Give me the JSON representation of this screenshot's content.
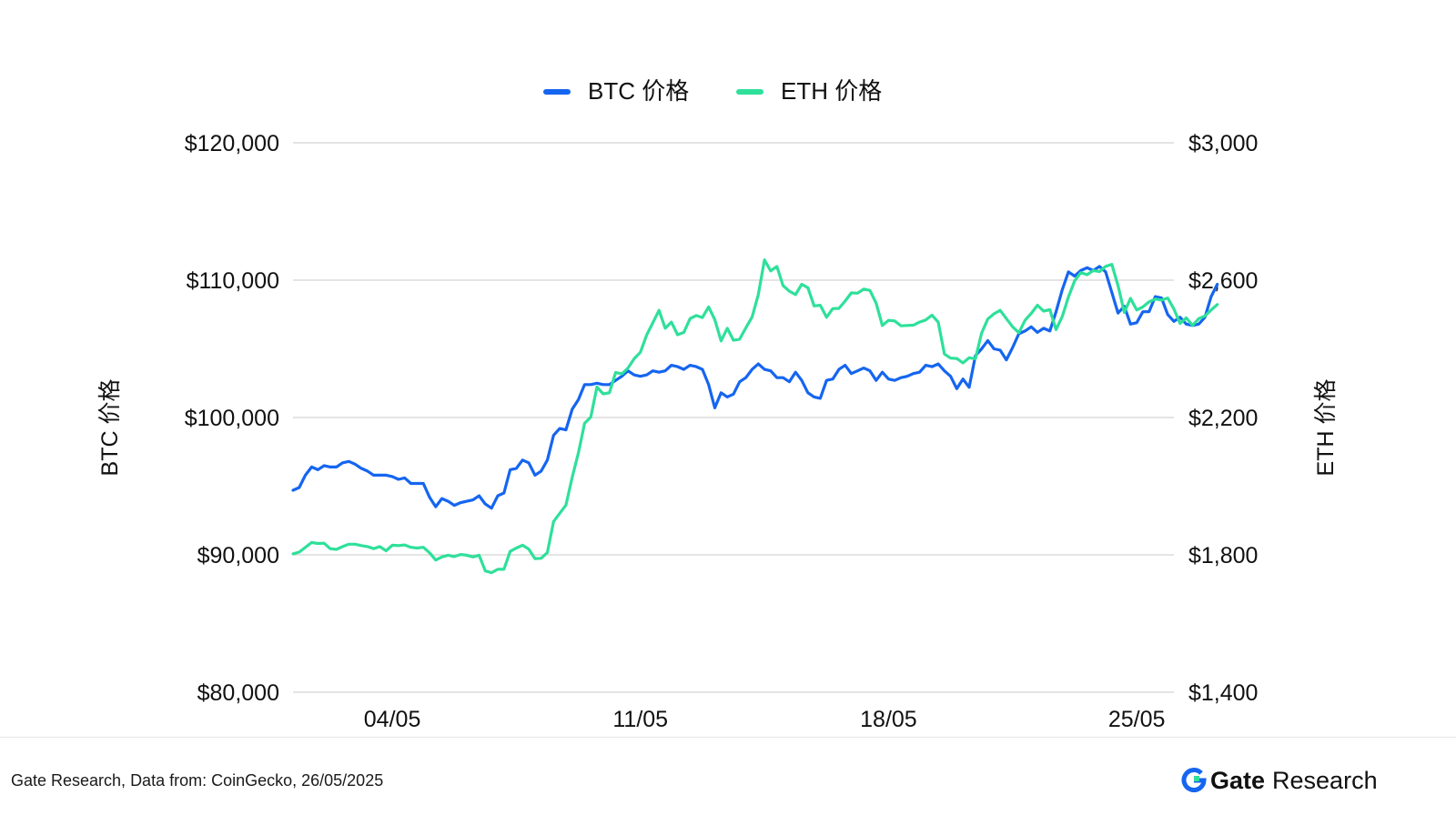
{
  "chart_data": {
    "type": "line",
    "title": "",
    "legend": {
      "placement": "top-center"
    },
    "grid": true,
    "x_ticks": [
      {
        "label": "04/05",
        "x": 6
      },
      {
        "label": "11/05",
        "x": 46
      },
      {
        "label": "18/05",
        "x": 86
      },
      {
        "label": "25/05",
        "x": 126
      }
    ],
    "x_range": [
      -10,
      132
    ],
    "y_left": {
      "label": "BTC 价格",
      "min": 80000,
      "max": 120000,
      "ticks": [
        "$80,000",
        "$90,000",
        "$100,000",
        "$110,000",
        "$120,000"
      ],
      "tick_values": [
        80000,
        90000,
        100000,
        110000,
        120000
      ]
    },
    "y_right": {
      "label": "ETH 价格",
      "min": 1400,
      "max": 3000,
      "ticks": [
        "$1,400",
        "$1,800",
        "$2,200",
        "$2,600",
        "$3,000"
      ],
      "tick_values": [
        1400,
        1800,
        2200,
        2600,
        3000
      ]
    },
    "series": [
      {
        "name": "BTC 价格",
        "axis": "left",
        "color": "#1565F0",
        "points": [
          [
            -10,
            94700
          ],
          [
            -9,
            94900
          ],
          [
            -8,
            95800
          ],
          [
            -7,
            96400
          ],
          [
            -6,
            96200
          ],
          [
            -5,
            96500
          ],
          [
            -4,
            96400
          ],
          [
            -3,
            96400
          ],
          [
            -2,
            96700
          ],
          [
            -1,
            96800
          ],
          [
            0,
            96600
          ],
          [
            1,
            96300
          ],
          [
            2,
            96100
          ],
          [
            3,
            95800
          ],
          [
            4,
            95800
          ],
          [
            5,
            95800
          ],
          [
            6,
            95700
          ],
          [
            7,
            95500
          ],
          [
            8,
            95600
          ],
          [
            9,
            95200
          ],
          [
            10,
            95200
          ],
          [
            11,
            95200
          ],
          [
            12,
            94200
          ],
          [
            13,
            93500
          ],
          [
            14,
            94100
          ],
          [
            15,
            93900
          ],
          [
            16,
            93600
          ],
          [
            17,
            93800
          ],
          [
            18,
            93900
          ],
          [
            19,
            94000
          ],
          [
            20,
            94300
          ],
          [
            21,
            93700
          ],
          [
            22,
            93400
          ],
          [
            23,
            94300
          ],
          [
            24,
            94500
          ],
          [
            25,
            96200
          ],
          [
            26,
            96300
          ],
          [
            27,
            96900
          ],
          [
            28,
            96700
          ],
          [
            29,
            95800
          ],
          [
            30,
            96100
          ],
          [
            31,
            96900
          ],
          [
            32,
            98700
          ],
          [
            33,
            99200
          ],
          [
            34,
            99100
          ],
          [
            35,
            100600
          ],
          [
            36,
            101300
          ],
          [
            37,
            102400
          ],
          [
            38,
            102400
          ],
          [
            39,
            102500
          ],
          [
            40,
            102400
          ],
          [
            41,
            102400
          ],
          [
            42,
            102700
          ],
          [
            43,
            103000
          ],
          [
            44,
            103400
          ],
          [
            45,
            103100
          ],
          [
            46,
            103000
          ],
          [
            47,
            103100
          ],
          [
            48,
            103400
          ],
          [
            49,
            103300
          ],
          [
            50,
            103400
          ],
          [
            51,
            103800
          ],
          [
            52,
            103700
          ],
          [
            53,
            103500
          ],
          [
            54,
            103800
          ],
          [
            55,
            103700
          ],
          [
            56,
            103500
          ],
          [
            57,
            102400
          ],
          [
            58,
            100700
          ],
          [
            59,
            101800
          ],
          [
            60,
            101500
          ],
          [
            61,
            101700
          ],
          [
            62,
            102600
          ],
          [
            63,
            102900
          ],
          [
            64,
            103500
          ],
          [
            65,
            103900
          ],
          [
            66,
            103500
          ],
          [
            67,
            103400
          ],
          [
            68,
            102900
          ],
          [
            69,
            102900
          ],
          [
            70,
            102600
          ],
          [
            71,
            103300
          ],
          [
            72,
            102700
          ],
          [
            73,
            101800
          ],
          [
            74,
            101500
          ],
          [
            75,
            101400
          ],
          [
            76,
            102700
          ],
          [
            77,
            102800
          ],
          [
            78,
            103500
          ],
          [
            79,
            103800
          ],
          [
            80,
            103200
          ],
          [
            81,
            103400
          ],
          [
            82,
            103600
          ],
          [
            83,
            103400
          ],
          [
            84,
            102700
          ],
          [
            85,
            103300
          ],
          [
            86,
            102800
          ],
          [
            87,
            102700
          ],
          [
            88,
            102900
          ],
          [
            89,
            103000
          ],
          [
            90,
            103200
          ],
          [
            91,
            103300
          ],
          [
            92,
            103800
          ],
          [
            93,
            103700
          ],
          [
            94,
            103900
          ],
          [
            95,
            103400
          ],
          [
            96,
            103000
          ],
          [
            97,
            102100
          ],
          [
            98,
            102800
          ],
          [
            99,
            102200
          ],
          [
            100,
            104500
          ],
          [
            101,
            105000
          ],
          [
            102,
            105600
          ],
          [
            103,
            105000
          ],
          [
            104,
            104900
          ],
          [
            105,
            104200
          ],
          [
            106,
            105100
          ],
          [
            107,
            106100
          ],
          [
            108,
            106300
          ],
          [
            109,
            106600
          ],
          [
            110,
            106200
          ],
          [
            111,
            106500
          ],
          [
            112,
            106300
          ],
          [
            113,
            107700
          ],
          [
            114,
            109300
          ],
          [
            115,
            110600
          ],
          [
            116,
            110300
          ],
          [
            117,
            110700
          ],
          [
            118,
            110900
          ],
          [
            119,
            110700
          ],
          [
            120,
            111000
          ],
          [
            121,
            110600
          ],
          [
            122,
            109100
          ],
          [
            123,
            107600
          ],
          [
            124,
            108100
          ],
          [
            125,
            106800
          ],
          [
            126,
            106900
          ],
          [
            127,
            107700
          ],
          [
            128,
            107700
          ],
          [
            129,
            108800
          ],
          [
            130,
            108700
          ],
          [
            131,
            107500
          ],
          [
            132,
            107000
          ],
          [
            133,
            107300
          ],
          [
            134,
            106800
          ],
          [
            135,
            106700
          ],
          [
            136,
            106800
          ],
          [
            137,
            107300
          ],
          [
            138,
            108800
          ],
          [
            139,
            109700
          ]
        ]
      },
      {
        "name": "ETH 价格",
        "axis": "right",
        "color": "#2EE09A",
        "points": [
          [
            -10,
            1803
          ],
          [
            -9,
            1808
          ],
          [
            -8,
            1822
          ],
          [
            -7,
            1836
          ],
          [
            -6,
            1833
          ],
          [
            -5,
            1834
          ],
          [
            -4,
            1818
          ],
          [
            -3,
            1816
          ],
          [
            -2,
            1824
          ],
          [
            -1,
            1831
          ],
          [
            0,
            1831
          ],
          [
            1,
            1827
          ],
          [
            2,
            1824
          ],
          [
            3,
            1818
          ],
          [
            4,
            1824
          ],
          [
            5,
            1812
          ],
          [
            6,
            1828
          ],
          [
            7,
            1827
          ],
          [
            8,
            1829
          ],
          [
            9,
            1822
          ],
          [
            10,
            1820
          ],
          [
            11,
            1822
          ],
          [
            12,
            1806
          ],
          [
            13,
            1785
          ],
          [
            14,
            1794
          ],
          [
            15,
            1799
          ],
          [
            16,
            1795
          ],
          [
            17,
            1801
          ],
          [
            18,
            1799
          ],
          [
            19,
            1794
          ],
          [
            20,
            1799
          ],
          [
            21,
            1753
          ],
          [
            22,
            1748
          ],
          [
            23,
            1758
          ],
          [
            24,
            1758
          ],
          [
            25,
            1810
          ],
          [
            26,
            1820
          ],
          [
            27,
            1828
          ],
          [
            28,
            1817
          ],
          [
            29,
            1789
          ],
          [
            30,
            1790
          ],
          [
            31,
            1807
          ],
          [
            32,
            1897
          ],
          [
            33,
            1921
          ],
          [
            34,
            1945
          ],
          [
            35,
            2026
          ],
          [
            36,
            2097
          ],
          [
            37,
            2183
          ],
          [
            38,
            2201
          ],
          [
            39,
            2289
          ],
          [
            40,
            2269
          ],
          [
            41,
            2272
          ],
          [
            42,
            2331
          ],
          [
            43,
            2327
          ],
          [
            44,
            2344
          ],
          [
            45,
            2371
          ],
          [
            46,
            2390
          ],
          [
            47,
            2440
          ],
          [
            48,
            2476
          ],
          [
            49,
            2512
          ],
          [
            50,
            2460
          ],
          [
            51,
            2478
          ],
          [
            52,
            2441
          ],
          [
            53,
            2448
          ],
          [
            54,
            2488
          ],
          [
            55,
            2497
          ],
          [
            56,
            2491
          ],
          [
            57,
            2522
          ],
          [
            58,
            2485
          ],
          [
            59,
            2423
          ],
          [
            60,
            2460
          ],
          [
            61,
            2425
          ],
          [
            62,
            2428
          ],
          [
            63,
            2461
          ],
          [
            64,
            2493
          ],
          [
            65,
            2558
          ],
          [
            66,
            2659
          ],
          [
            67,
            2627
          ],
          [
            68,
            2640
          ],
          [
            69,
            2584
          ],
          [
            70,
            2568
          ],
          [
            71,
            2558
          ],
          [
            72,
            2588
          ],
          [
            73,
            2578
          ],
          [
            74,
            2525
          ],
          [
            75,
            2527
          ],
          [
            76,
            2492
          ],
          [
            77,
            2517
          ],
          [
            78,
            2518
          ],
          [
            79,
            2539
          ],
          [
            80,
            2563
          ],
          [
            81,
            2562
          ],
          [
            82,
            2574
          ],
          [
            83,
            2570
          ],
          [
            84,
            2533
          ],
          [
            85,
            2468
          ],
          [
            86,
            2483
          ],
          [
            87,
            2481
          ],
          [
            88,
            2467
          ],
          [
            89,
            2468
          ],
          [
            90,
            2469
          ],
          [
            91,
            2478
          ],
          [
            92,
            2484
          ],
          [
            93,
            2498
          ],
          [
            94,
            2478
          ],
          [
            95,
            2385
          ],
          [
            96,
            2373
          ],
          [
            97,
            2372
          ],
          [
            98,
            2359
          ],
          [
            99,
            2374
          ],
          [
            100,
            2371
          ],
          [
            101,
            2446
          ],
          [
            102,
            2487
          ],
          [
            103,
            2502
          ],
          [
            104,
            2512
          ],
          [
            105,
            2488
          ],
          [
            106,
            2464
          ],
          [
            107,
            2447
          ],
          [
            108,
            2483
          ],
          [
            109,
            2503
          ],
          [
            110,
            2527
          ],
          [
            111,
            2510
          ],
          [
            112,
            2514
          ],
          [
            113,
            2456
          ],
          [
            114,
            2494
          ],
          [
            115,
            2551
          ],
          [
            116,
            2598
          ],
          [
            117,
            2622
          ],
          [
            118,
            2616
          ],
          [
            119,
            2628
          ],
          [
            120,
            2625
          ],
          [
            121,
            2640
          ],
          [
            122,
            2646
          ],
          [
            123,
            2584
          ],
          [
            124,
            2506
          ],
          [
            125,
            2547
          ],
          [
            126,
            2513
          ],
          [
            127,
            2522
          ],
          [
            128,
            2537
          ],
          [
            129,
            2545
          ],
          [
            130,
            2542
          ],
          [
            131,
            2548
          ],
          [
            132,
            2516
          ],
          [
            133,
            2474
          ],
          [
            134,
            2490
          ],
          [
            135,
            2468
          ],
          [
            136,
            2488
          ],
          [
            137,
            2496
          ],
          [
            138,
            2513
          ],
          [
            139,
            2529
          ]
        ]
      }
    ]
  },
  "footer": {
    "source": "Gate Research, Data from: CoinGecko, 26/05/2025",
    "brand_name": "Gate",
    "brand_sub": "Research"
  }
}
